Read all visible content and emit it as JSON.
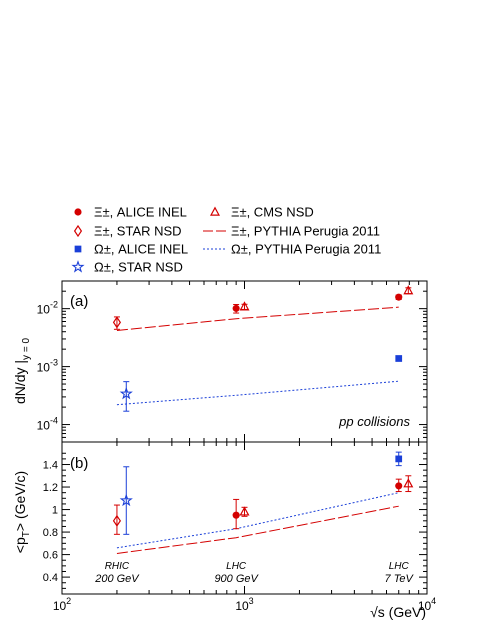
{
  "colors": {
    "red": "#d40000",
    "blue": "#1a3fd8",
    "ink": "#000000"
  },
  "chart_data": [
    {
      "type": "scatter",
      "panel_label": "(a)",
      "ylabel": "dN/dy |",
      "ylabel_sub": "y = 0",
      "xscale": "log",
      "yscale": "log",
      "xlim": [
        100,
        10000
      ],
      "ylim": [
        5e-05,
        0.03
      ],
      "y_ticks": [
        {
          "value": 0.0001,
          "base": "10",
          "exp": "-4"
        },
        {
          "value": 0.001,
          "base": "10",
          "exp": "-3"
        },
        {
          "value": 0.01,
          "base": "10",
          "exp": "-2"
        }
      ],
      "annotation": "pp collisions",
      "series": [
        {
          "name": "Ξ±, ALICE INEL",
          "marker": "filled-circle",
          "color": "red",
          "points": [
            {
              "x": 900,
              "y": 0.0101,
              "err_lo": 0.0017,
              "err_hi": 0.0017
            },
            {
              "x": 7000,
              "y": 0.0158,
              "err_lo": 0.0014,
              "err_hi": 0.0014
            }
          ]
        },
        {
          "name": "Ξ±, STAR NSD",
          "marker": "open-diamond",
          "color": "red",
          "points": [
            {
              "x": 200,
              "y": 0.0058,
              "err_lo": 0.0014,
              "err_hi": 0.0014
            }
          ]
        },
        {
          "name": "Ω±, ALICE INEL",
          "marker": "filled-square",
          "color": "blue",
          "points": [
            {
              "x": 7000,
              "y": 0.00138,
              "err_lo": 0,
              "err_hi": 0
            }
          ]
        },
        {
          "name": "Ω±, STAR NSD",
          "marker": "open-star",
          "color": "blue",
          "points": [
            {
              "x": 225,
              "y": 0.00034,
              "err_lo": 0.00017,
              "err_hi": 0.00021
            }
          ]
        },
        {
          "name": "Ξ±, CMS NSD",
          "marker": "open-triangle",
          "color": "red",
          "points": [
            {
              "x": 1000,
              "y": 0.0108,
              "err_lo": 0.0011,
              "err_hi": 0.0011
            },
            {
              "x": 7900,
              "y": 0.0205,
              "err_lo": 0.0024,
              "err_hi": 0.0024
            }
          ]
        }
      ],
      "curves": [
        {
          "name": "Ξ±, PYTHIA Perugia 2011",
          "style": "long-dash",
          "color": "red",
          "x": [
            200,
            900,
            7000
          ],
          "y": [
            0.0042,
            0.0067,
            0.0106
          ]
        },
        {
          "name": "Ω±, PYTHIA Perugia 2011",
          "style": "dotted",
          "color": "blue",
          "x": [
            200,
            900,
            7000
          ],
          "y": [
            0.00022,
            0.00032,
            0.00056
          ]
        }
      ]
    },
    {
      "type": "scatter",
      "panel_label": "(b)",
      "ylabel": "<p",
      "ylabel_sub": "T",
      "ylabel_tail": "> (GeV/c)",
      "xlabel": "√s (GeV)",
      "xscale": "log",
      "xlim": [
        100,
        10000
      ],
      "ylim": [
        0.25,
        1.6
      ],
      "y_ticks": [
        "0.4",
        "0.6",
        "0.8",
        "1",
        "1.2",
        "1.4"
      ],
      "x_ticks": [
        {
          "value": 100,
          "base": "10",
          "exp": "2"
        },
        {
          "value": 1000,
          "base": "10",
          "exp": "3"
        },
        {
          "value": 10000,
          "base": "10",
          "exp": "4"
        }
      ],
      "energy_labels": [
        {
          "x": 200,
          "line1": "RHIC",
          "line2": "200 GeV"
        },
        {
          "x": 900,
          "line1": "LHC",
          "line2": "900 GeV"
        },
        {
          "x": 7000,
          "line1": "LHC",
          "line2": "7 TeV"
        }
      ],
      "series": [
        {
          "name": "Ξ±, ALICE INEL",
          "marker": "filled-circle",
          "color": "red",
          "points": [
            {
              "x": 900,
              "y": 0.95,
              "err_lo": 0.12,
              "err_hi": 0.14
            },
            {
              "x": 7000,
              "y": 1.21,
              "err_lo": 0.05,
              "err_hi": 0.06
            }
          ]
        },
        {
          "name": "Ξ±, STAR NSD",
          "marker": "open-diamond",
          "color": "red",
          "points": [
            {
              "x": 200,
              "y": 0.9,
              "err_lo": 0.12,
              "err_hi": 0.14
            }
          ]
        },
        {
          "name": "Ω±, ALICE INEL",
          "marker": "filled-square",
          "color": "blue",
          "points": [
            {
              "x": 7000,
              "y": 1.45,
              "err_lo": 0.06,
              "err_hi": 0.06
            }
          ]
        },
        {
          "name": "Ω±, STAR NSD",
          "marker": "open-star",
          "color": "blue",
          "points": [
            {
              "x": 225,
              "y": 1.08,
              "err_lo": 0.3,
              "err_hi": 0.3
            }
          ]
        },
        {
          "name": "Ξ±, CMS NSD",
          "marker": "open-triangle",
          "color": "red",
          "points": [
            {
              "x": 1000,
              "y": 0.98,
              "err_lo": 0.04,
              "err_hi": 0.04
            },
            {
              "x": 7900,
              "y": 1.23,
              "err_lo": 0.07,
              "err_hi": 0.07
            }
          ]
        }
      ],
      "curves": [
        {
          "name": "Ξ±, PYTHIA Perugia 2011",
          "style": "long-dash",
          "color": "red",
          "x": [
            200,
            900,
            7000
          ],
          "y": [
            0.61,
            0.75,
            1.03
          ]
        },
        {
          "name": "Ω±, PYTHIA Perugia 2011",
          "style": "dotted",
          "color": "blue",
          "x": [
            200,
            900,
            7000
          ],
          "y": [
            0.66,
            0.83,
            1.15
          ]
        }
      ]
    }
  ],
  "legend": [
    {
      "label": "Ξ±, ALICE INEL",
      "marker": "filled-circle",
      "color": "red"
    },
    {
      "label": "Ξ±, CMS NSD",
      "marker": "open-triangle",
      "color": "red"
    },
    {
      "label": "Ξ±, STAR NSD",
      "marker": "open-diamond",
      "color": "red"
    },
    {
      "label": "Ξ±, PYTHIA Perugia 2011",
      "marker": "long-dash",
      "color": "red"
    },
    {
      "label": "Ω±, ALICE INEL",
      "marker": "filled-square",
      "color": "blue"
    },
    {
      "label": "Ω±, PYTHIA Perugia 2011",
      "marker": "dotted",
      "color": "blue"
    },
    {
      "label": "Ω±, STAR NSD",
      "marker": "open-star",
      "color": "blue"
    }
  ]
}
